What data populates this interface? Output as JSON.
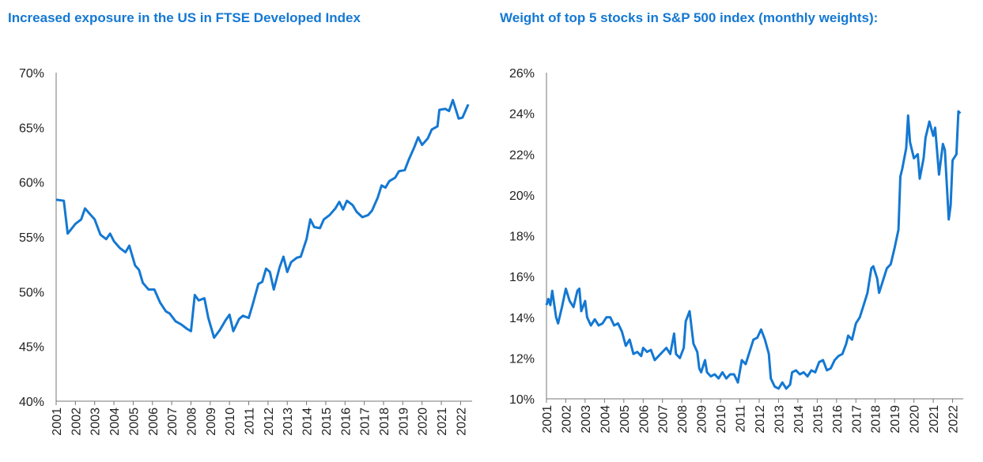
{
  "chart_data": [
    {
      "type": "line",
      "title": "Increased exposure in the US in FTSE Developed Index",
      "color": "#1478d2",
      "x": [
        2001.0,
        2001.4,
        2001.6,
        2002.0,
        2002.3,
        2002.5,
        2002.8,
        2003.0,
        2003.3,
        2003.6,
        2003.8,
        2004.0,
        2004.3,
        2004.6,
        2004.8,
        2005.1,
        2005.3,
        2005.5,
        2005.8,
        2006.1,
        2006.4,
        2006.7,
        2006.9,
        2007.2,
        2007.5,
        2007.8,
        2008.0,
        2008.2,
        2008.4,
        2008.7,
        2008.9,
        2009.2,
        2009.5,
        2009.8,
        2010.0,
        2010.2,
        2010.5,
        2010.7,
        2011.0,
        2011.2,
        2011.5,
        2011.7,
        2011.9,
        2012.1,
        2012.3,
        2012.6,
        2012.8,
        2013.0,
        2013.2,
        2013.5,
        2013.7,
        2014.0,
        2014.2,
        2014.4,
        2014.7,
        2014.9,
        2015.2,
        2015.5,
        2015.7,
        2015.9,
        2016.1,
        2016.4,
        2016.6,
        2016.9,
        2017.2,
        2017.4,
        2017.7,
        2017.9,
        2018.1,
        2018.3,
        2018.6,
        2018.8,
        2019.1,
        2019.3,
        2019.6,
        2019.8,
        2020.0,
        2020.3,
        2020.5,
        2020.8,
        2020.9,
        2021.2,
        2021.4,
        2021.6,
        2021.9,
        2022.1,
        2022.4
      ],
      "values": [
        58.4,
        58.3,
        55.3,
        56.2,
        56.6,
        57.6,
        57.0,
        56.6,
        55.2,
        54.8,
        55.3,
        54.6,
        54.0,
        53.6,
        54.2,
        52.4,
        52.0,
        50.8,
        50.2,
        50.2,
        49.0,
        48.2,
        48.0,
        47.3,
        47.0,
        46.6,
        46.4,
        49.7,
        49.2,
        49.4,
        47.6,
        45.8,
        46.5,
        47.4,
        47.9,
        46.4,
        47.5,
        47.8,
        47.6,
        48.8,
        50.7,
        50.9,
        52.1,
        51.8,
        50.2,
        52.2,
        53.2,
        51.8,
        52.7,
        53.1,
        53.2,
        54.8,
        56.6,
        55.9,
        55.8,
        56.6,
        57.0,
        57.6,
        58.2,
        57.5,
        58.3,
        57.9,
        57.3,
        56.8,
        57.0,
        57.4,
        58.6,
        59.7,
        59.5,
        60.1,
        60.4,
        61.0,
        61.1,
        62.0,
        63.2,
        64.1,
        63.4,
        64.0,
        64.8,
        65.1,
        66.6,
        66.7,
        66.5,
        67.5,
        65.8,
        65.9,
        67.1
      ],
      "xlim": [
        2001,
        2022.6
      ],
      "xticks": [
        2001,
        2002,
        2003,
        2004,
        2005,
        2006,
        2007,
        2008,
        2009,
        2010,
        2011,
        2012,
        2013,
        2014,
        2015,
        2016,
        2017,
        2018,
        2019,
        2020,
        2021,
        2022
      ],
      "ylim": [
        40,
        70
      ],
      "yticks": [
        {
          "value": 40,
          "label": "40%"
        },
        {
          "value": 45,
          "label": "45%"
        },
        {
          "value": 50,
          "label": "50%"
        },
        {
          "value": 55,
          "label": "55%"
        },
        {
          "value": 60,
          "label": "60%"
        },
        {
          "value": 65,
          "label": "65%"
        },
        {
          "value": 70,
          "label": "70%"
        }
      ]
    },
    {
      "type": "line",
      "title": "Weight of top 5 stocks in S&P 500 index (monthly weights):",
      "color": "#1478d2",
      "x": [
        2001.0,
        2001.1,
        2001.2,
        2001.3,
        2001.5,
        2001.6,
        2001.8,
        2002.0,
        2002.2,
        2002.4,
        2002.6,
        2002.7,
        2002.8,
        2003.0,
        2003.1,
        2003.3,
        2003.5,
        2003.7,
        2003.9,
        2004.1,
        2004.3,
        2004.5,
        2004.7,
        2004.9,
        2005.1,
        2005.3,
        2005.5,
        2005.7,
        2005.9,
        2006.0,
        2006.2,
        2006.4,
        2006.6,
        2006.8,
        2007.0,
        2007.2,
        2007.4,
        2007.6,
        2007.7,
        2007.9,
        2008.1,
        2008.2,
        2008.4,
        2008.6,
        2008.8,
        2008.9,
        2009.0,
        2009.2,
        2009.3,
        2009.5,
        2009.7,
        2009.9,
        2010.1,
        2010.3,
        2010.5,
        2010.7,
        2010.9,
        2011.1,
        2011.3,
        2011.5,
        2011.7,
        2011.9,
        2012.1,
        2012.3,
        2012.5,
        2012.6,
        2012.8,
        2013.0,
        2013.2,
        2013.4,
        2013.6,
        2013.7,
        2013.9,
        2014.1,
        2014.3,
        2014.5,
        2014.7,
        2014.9,
        2015.1,
        2015.3,
        2015.5,
        2015.7,
        2015.9,
        2016.1,
        2016.3,
        2016.5,
        2016.6,
        2016.8,
        2017.0,
        2017.2,
        2017.4,
        2017.6,
        2017.8,
        2017.9,
        2018.1,
        2018.2,
        2018.4,
        2018.6,
        2018.8,
        2019.0,
        2019.2,
        2019.3,
        2019.4,
        2019.6,
        2019.7,
        2019.8,
        2020.0,
        2020.2,
        2020.3,
        2020.5,
        2020.6,
        2020.8,
        2021.0,
        2021.1,
        2021.3,
        2021.5,
        2021.6,
        2021.8,
        2021.9,
        2022.0,
        2022.2,
        2022.3,
        2022.4
      ],
      "values": [
        14.6,
        14.9,
        14.6,
        15.3,
        14.0,
        13.7,
        14.5,
        15.4,
        14.8,
        14.5,
        15.3,
        15.4,
        14.3,
        14.8,
        14.0,
        13.6,
        13.9,
        13.6,
        13.7,
        14.0,
        14.0,
        13.6,
        13.7,
        13.3,
        12.6,
        12.9,
        12.2,
        12.3,
        12.1,
        12.5,
        12.3,
        12.4,
        11.9,
        12.1,
        12.3,
        12.5,
        12.2,
        13.2,
        12.2,
        12.0,
        12.5,
        13.8,
        14.3,
        12.7,
        12.3,
        11.5,
        11.3,
        11.9,
        11.3,
        11.1,
        11.2,
        11.0,
        11.3,
        11.0,
        11.2,
        11.2,
        10.8,
        11.9,
        11.7,
        12.3,
        12.9,
        13.0,
        13.4,
        12.9,
        12.2,
        11.0,
        10.6,
        10.5,
        10.8,
        10.5,
        10.7,
        11.3,
        11.4,
        11.2,
        11.3,
        11.1,
        11.4,
        11.3,
        11.8,
        11.9,
        11.4,
        11.5,
        11.9,
        12.1,
        12.2,
        12.7,
        13.1,
        12.9,
        13.7,
        14.0,
        14.6,
        15.2,
        16.4,
        16.5,
        15.9,
        15.2,
        15.8,
        16.4,
        16.6,
        17.4,
        18.3,
        20.9,
        21.3,
        22.3,
        23.9,
        22.6,
        21.8,
        22.0,
        20.8,
        21.8,
        22.8,
        23.6,
        22.9,
        23.3,
        21.0,
        22.5,
        22.2,
        18.8,
        19.5,
        21.7,
        22.0,
        24.1,
        24.0
      ],
      "xlim": [
        2001,
        2022.55
      ],
      "xticks": [
        2001,
        2002,
        2003,
        2004,
        2005,
        2006,
        2007,
        2008,
        2009,
        2010,
        2011,
        2012,
        2013,
        2014,
        2015,
        2016,
        2017,
        2018,
        2019,
        2020,
        2021,
        2022
      ],
      "ylim": [
        10,
        26
      ],
      "yticks": [
        {
          "value": 10,
          "label": "10%"
        },
        {
          "value": 12,
          "label": "12%"
        },
        {
          "value": 14,
          "label": "14%"
        },
        {
          "value": 16,
          "label": "16%"
        },
        {
          "value": 18,
          "label": "18%"
        },
        {
          "value": 20,
          "label": "20%"
        },
        {
          "value": 22,
          "label": "22%"
        },
        {
          "value": 24,
          "label": "24%"
        },
        {
          "value": 26,
          "label": "26%"
        }
      ]
    }
  ]
}
